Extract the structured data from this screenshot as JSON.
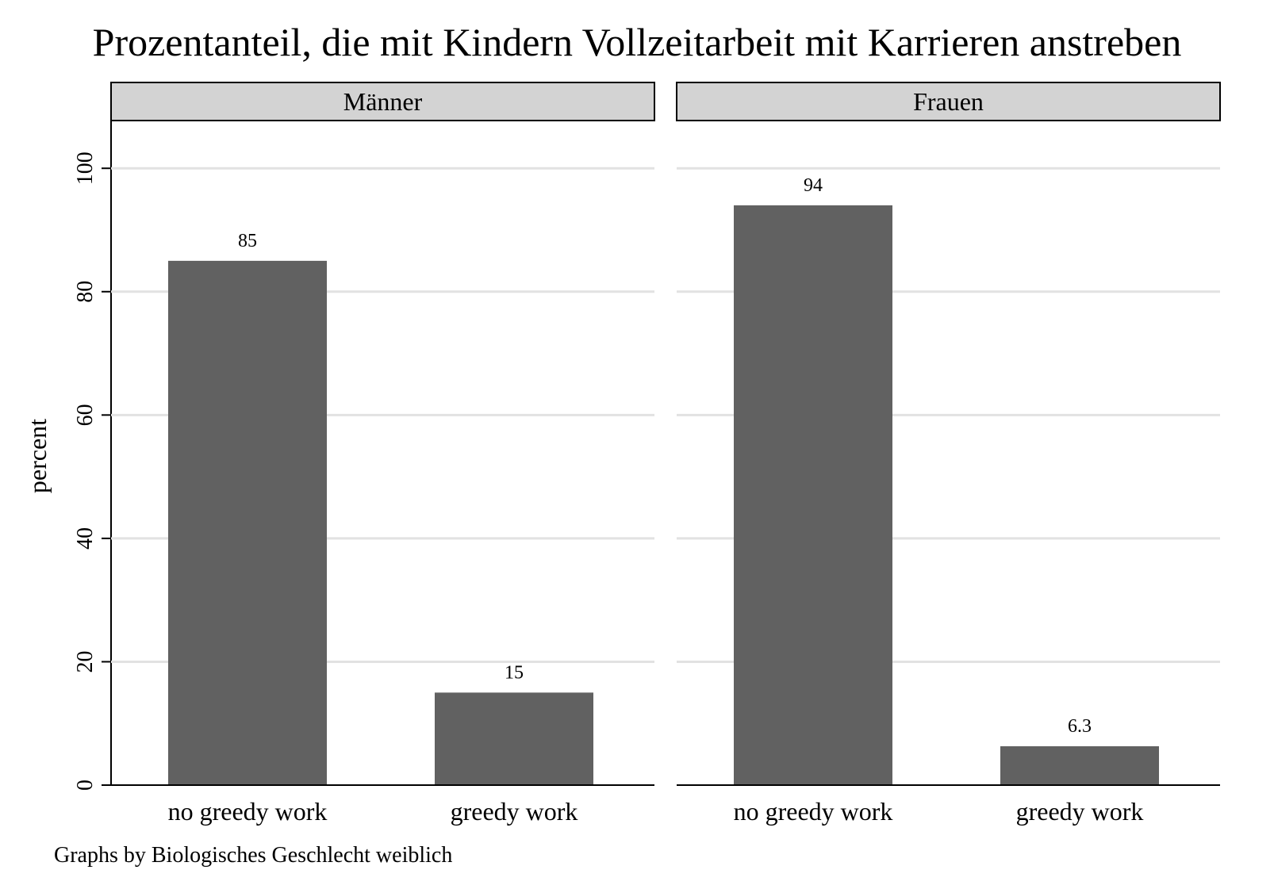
{
  "chart_data": {
    "type": "bar",
    "title": "Prozentanteil, die mit Kindern Vollzeitarbeit mit Karrieren anstreben",
    "ylabel": "percent",
    "ylim": [
      0,
      108
    ],
    "yticks": [
      "0",
      "20",
      "40",
      "60",
      "80",
      "100"
    ],
    "categories": [
      "no greedy work",
      "greedy work"
    ],
    "grid": true,
    "note": "Graphs by Biologisches Geschlecht weiblich",
    "panels": [
      {
        "name": "Männer",
        "values": [
          85,
          15
        ],
        "value_labels": [
          "85",
          "15"
        ]
      },
      {
        "name": "Frauen",
        "values": [
          94,
          6.3
        ],
        "value_labels": [
          "94",
          "6.3"
        ]
      }
    ],
    "colors": {
      "bar": "#616161",
      "strip": "#d3d3d3",
      "grid": "#e2e2e2"
    }
  }
}
